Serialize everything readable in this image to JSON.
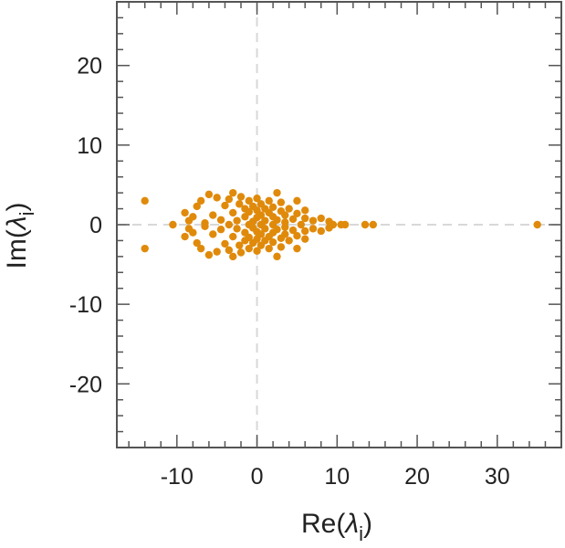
{
  "chart_data": {
    "type": "scatter",
    "title": "",
    "xlabel": {
      "main": "Re(",
      "symbol": "λ",
      "sub": "i",
      "close": ")"
    },
    "ylabel": {
      "main": "Im(",
      "symbol": "λ",
      "sub": "i",
      "close": ")"
    },
    "xlim": [
      -17.5,
      38
    ],
    "ylim": [
      -28,
      28
    ],
    "xticks": [
      -10,
      0,
      10,
      20,
      30
    ],
    "xtick_labels": [
      "-10",
      "0",
      "10",
      "20",
      "30"
    ],
    "yticks": [
      -20,
      -10,
      0,
      10,
      20
    ],
    "ytick_labels": [
      "-20",
      "-10",
      "0",
      "10",
      "20"
    ],
    "minor_tick_step": 2,
    "grid": false,
    "reference_lines": {
      "x": 0,
      "y": 0,
      "style": "dashed"
    },
    "marker_color": "#e08a0b",
    "reference_line_color": "#d8d8d8",
    "series": [
      {
        "points": [
          [
            -14,
            3
          ],
          [
            -14,
            -3
          ],
          [
            -10.5,
            0
          ],
          [
            -9,
            1.5
          ],
          [
            -9,
            -1.5
          ],
          [
            -8.5,
            0.5
          ],
          [
            -8.5,
            -0.5
          ],
          [
            -8,
            1
          ],
          [
            -8,
            -1
          ],
          [
            -7.5,
            2.3
          ],
          [
            -7.5,
            -2.3
          ],
          [
            -7,
            3
          ],
          [
            -7,
            -3
          ],
          [
            -6.5,
            0.2
          ],
          [
            -6.5,
            -0.2
          ],
          [
            -6,
            3.8
          ],
          [
            -6,
            -3.8
          ],
          [
            -5.5,
            1.2
          ],
          [
            -5.5,
            -1.2
          ],
          [
            -5,
            3.4
          ],
          [
            -5,
            -3.4
          ],
          [
            -4.5,
            0.6
          ],
          [
            -4.5,
            -0.6
          ],
          [
            -4,
            2.4
          ],
          [
            -4,
            -2.4
          ],
          [
            -3.5,
            0
          ],
          [
            -3.5,
            3.2
          ],
          [
            -3.5,
            -3.2
          ],
          [
            -3,
            4
          ],
          [
            -3,
            -4
          ],
          [
            -3,
            1.5
          ],
          [
            -3,
            -1.5
          ],
          [
            -2.5,
            0.5
          ],
          [
            -2.5,
            -0.5
          ],
          [
            -2.2,
            2.6
          ],
          [
            -2.2,
            -2.6
          ],
          [
            -2,
            3.5
          ],
          [
            -2,
            -3.5
          ],
          [
            -1.5,
            1
          ],
          [
            -1.5,
            -1
          ],
          [
            -1.5,
            2
          ],
          [
            -1.5,
            -2
          ],
          [
            -1,
            0
          ],
          [
            -1,
            3
          ],
          [
            -1,
            -3
          ],
          [
            -1,
            1.6
          ],
          [
            -1,
            -1.6
          ],
          [
            -0.5,
            0.4
          ],
          [
            -0.5,
            -0.4
          ],
          [
            -0.5,
            2.3
          ],
          [
            -0.5,
            -2.3
          ],
          [
            0,
            0.9
          ],
          [
            0,
            -0.9
          ],
          [
            0,
            3.3
          ],
          [
            0,
            -3.3
          ],
          [
            0,
            1.8
          ],
          [
            0,
            -1.8
          ],
          [
            0.5,
            0
          ],
          [
            0.5,
            2.6
          ],
          [
            0.5,
            -2.6
          ],
          [
            0.5,
            1.2
          ],
          [
            0.5,
            -1.2
          ],
          [
            1,
            0.5
          ],
          [
            1,
            -0.5
          ],
          [
            1,
            2
          ],
          [
            1,
            -2
          ],
          [
            1.5,
            1.5
          ],
          [
            1.5,
            -1.5
          ],
          [
            1.5,
            3
          ],
          [
            1.5,
            -3
          ],
          [
            2,
            0
          ],
          [
            2,
            1
          ],
          [
            2,
            -1
          ],
          [
            2,
            2.2
          ],
          [
            2,
            -2.2
          ],
          [
            2.5,
            0.6
          ],
          [
            2.5,
            -0.6
          ],
          [
            2.5,
            4
          ],
          [
            2.5,
            -4
          ],
          [
            3,
            1.7
          ],
          [
            3,
            -1.7
          ],
          [
            3,
            2.8
          ],
          [
            3,
            -2.8
          ],
          [
            3.5,
            0.3
          ],
          [
            3.5,
            -0.3
          ],
          [
            3.5,
            1.2
          ],
          [
            3.5,
            -1.2
          ],
          [
            4,
            2
          ],
          [
            4,
            -2
          ],
          [
            4.5,
            0.7
          ],
          [
            4.5,
            -0.7
          ],
          [
            5,
            1.4
          ],
          [
            5,
            -1.4
          ],
          [
            5,
            3
          ],
          [
            5,
            -3
          ],
          [
            5.5,
            0
          ],
          [
            6,
            0.8
          ],
          [
            6,
            -0.8
          ],
          [
            6,
            1.8
          ],
          [
            6,
            -1.8
          ],
          [
            7,
            0.5
          ],
          [
            7,
            -0.5
          ],
          [
            8,
            0.8
          ],
          [
            8,
            -0.8
          ],
          [
            9,
            0.4
          ],
          [
            9,
            -0.4
          ],
          [
            9.5,
            0
          ],
          [
            10.5,
            0
          ],
          [
            11,
            0
          ],
          [
            13.5,
            0
          ],
          [
            14.5,
            0
          ],
          [
            35,
            0
          ]
        ]
      }
    ]
  }
}
